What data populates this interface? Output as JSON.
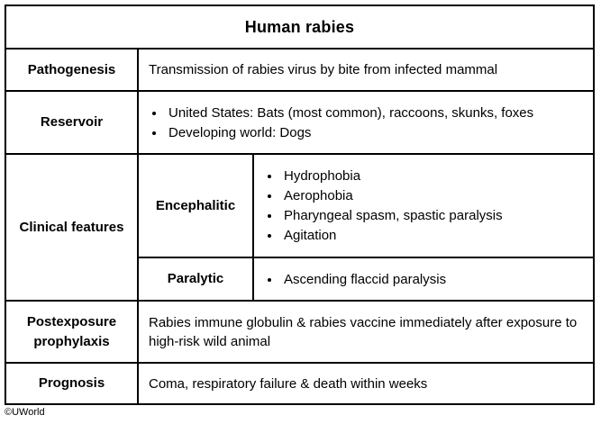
{
  "table": {
    "title": "Human rabies",
    "colors": {
      "border": "#000000",
      "background": "#ffffff",
      "text": "#000000"
    },
    "rows": {
      "pathogenesis": {
        "label": "Pathogenesis",
        "text": "Transmission of rabies virus by bite from infected mammal"
      },
      "reservoir": {
        "label": "Reservoir",
        "bullets": [
          "United States: Bats (most common), raccoons, skunks, foxes",
          "Developing world: Dogs"
        ]
      },
      "clinical": {
        "label": "Clinical features",
        "encephalitic": {
          "label": "Encephalitic",
          "bullets": [
            "Hydrophobia",
            "Aerophobia",
            "Pharyngeal spasm, spastic paralysis",
            "Agitation"
          ]
        },
        "paralytic": {
          "label": "Paralytic",
          "bullets": [
            "Ascending flaccid paralysis"
          ]
        }
      },
      "postexposure": {
        "label": "Postexposure prophylaxis",
        "text": "Rabies immune globulin & rabies vaccine immediately after exposure to high-risk wild animal"
      },
      "prognosis": {
        "label": "Prognosis",
        "text": "Coma, respiratory failure & death within weeks"
      }
    }
  },
  "copyright": "©UWorld"
}
